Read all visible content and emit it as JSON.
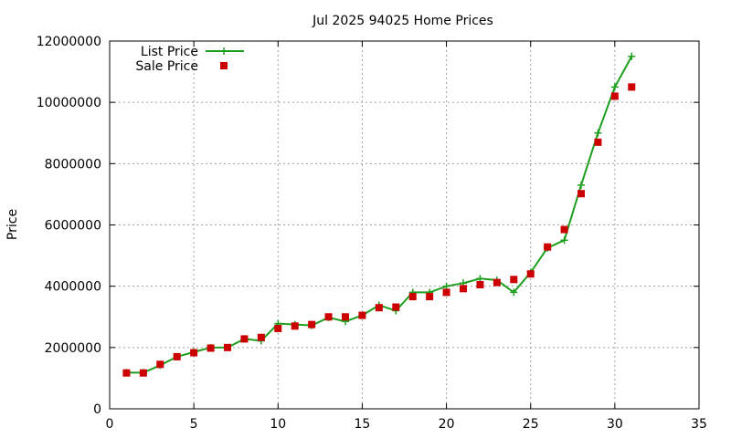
{
  "chart_data": {
    "type": "line",
    "title": "Jul 2025 94025 Home Prices",
    "xlabel": "",
    "ylabel": "Price",
    "xlim": [
      0,
      35
    ],
    "ylim": [
      0,
      12000000
    ],
    "xticks": [
      0,
      5,
      10,
      15,
      20,
      25,
      30,
      35
    ],
    "yticks": [
      0,
      2000000,
      4000000,
      6000000,
      8000000,
      10000000,
      12000000
    ],
    "xtick_labels": [
      "0",
      "5",
      "10",
      "15",
      "20",
      "25",
      "30",
      "35"
    ],
    "ytick_labels": [
      "0",
      "2000000",
      "4000000",
      "6000000",
      "8000000",
      "10000000",
      "12000000"
    ],
    "grid": true,
    "legend_position": "top-left",
    "series": [
      {
        "name": "List Price",
        "style": "line-with-plus-markers",
        "color": "#1e9e1e",
        "x": [
          1,
          2,
          3,
          4,
          5,
          6,
          7,
          8,
          9,
          10,
          11,
          12,
          13,
          14,
          15,
          16,
          17,
          18,
          19,
          20,
          21,
          22,
          23,
          24,
          25,
          26,
          27,
          28,
          29,
          30,
          31
        ],
        "y": [
          1180000,
          1180000,
          1420000,
          1700000,
          1850000,
          2000000,
          2000000,
          2280000,
          2220000,
          2780000,
          2750000,
          2720000,
          2980000,
          2850000,
          3050000,
          3380000,
          3200000,
          3800000,
          3800000,
          4000000,
          4100000,
          4250000,
          4200000,
          3800000,
          4450000,
          5250000,
          5500000,
          7300000,
          9000000,
          10500000,
          11500000
        ]
      },
      {
        "name": "Sale Price",
        "style": "square-markers",
        "color": "#cc0000",
        "x": [
          1,
          2,
          3,
          4,
          5,
          6,
          7,
          8,
          9,
          10,
          11,
          12,
          13,
          14,
          15,
          16,
          17,
          18,
          19,
          20,
          21,
          22,
          23,
          24,
          25,
          26,
          27,
          28,
          29,
          30,
          31
        ],
        "y": [
          1170000,
          1170000,
          1450000,
          1700000,
          1830000,
          1980000,
          2000000,
          2280000,
          2330000,
          2620000,
          2700000,
          2750000,
          3000000,
          3000000,
          3050000,
          3300000,
          3320000,
          3660000,
          3660000,
          3800000,
          3920000,
          4050000,
          4120000,
          4220000,
          4400000,
          5280000,
          5850000,
          7020000,
          8700000,
          10200000,
          10500000
        ]
      }
    ]
  }
}
